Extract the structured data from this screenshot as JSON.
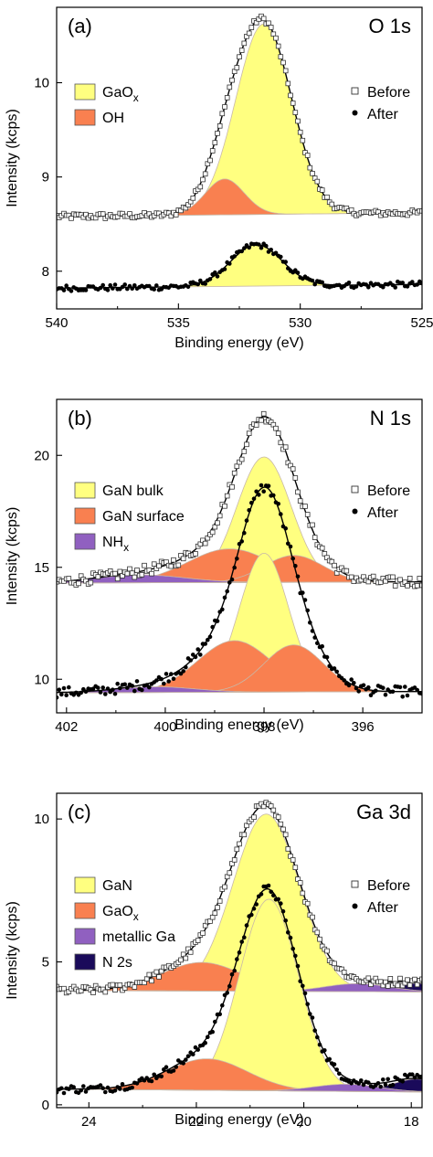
{
  "chart_data": [
    {
      "type": "line",
      "panel_tag": "(a)",
      "title": "O 1s",
      "xlabel": "Binding energy (eV)",
      "ylabel": "Intensity (kcps)",
      "xlim": [
        540,
        525
      ],
      "ylim": [
        7.6,
        10.8
      ],
      "x_reversed": true,
      "xticks": [
        540,
        535,
        530,
        525
      ],
      "yticks": [
        8,
        9,
        10
      ],
      "legend_components": [
        {
          "name": "GaO",
          "sub": "x",
          "color": "#ffff80"
        },
        {
          "name": "OH",
          "sub": "",
          "color": "#f98050"
        }
      ],
      "legend_data": [
        {
          "name": "Before",
          "marker": "open-square"
        },
        {
          "name": "After",
          "marker": "filled-circle"
        }
      ],
      "datasets": [
        {
          "name": "Before",
          "marker": "open-square",
          "baseline": [
            8.58,
            8.62
          ],
          "components": [
            {
              "name": "GaO",
              "sub": "x",
              "color": "#ffff80",
              "center": 531.5,
              "height": 2.02,
              "width": 1.15
            },
            {
              "name": "OH",
              "sub": "",
              "color": "#f98050",
              "center": 533.1,
              "height": 0.38,
              "width": 0.8
            }
          ],
          "noise": 0.03
        },
        {
          "name": "After",
          "marker": "filled-circle",
          "baseline": [
            7.82,
            7.86
          ],
          "components": [
            {
              "name": "GaO",
              "sub": "x",
              "color": "#ffff80",
              "center": 531.8,
              "height": 0.44,
              "width": 1.05
            }
          ],
          "noise": 0.03
        }
      ]
    },
    {
      "type": "line",
      "panel_tag": "(b)",
      "title": "N 1s",
      "xlabel": "Binding energy (eV)",
      "ylabel": "Intensity (kcps)",
      "xlim": [
        402.2,
        394.8
      ],
      "ylim": [
        8.5,
        22.5
      ],
      "x_reversed": true,
      "xticks": [
        402,
        400,
        398,
        396
      ],
      "yticks": [
        10,
        15,
        20
      ],
      "legend_components": [
        {
          "name": "GaN bulk",
          "sub": "",
          "color": "#ffff80"
        },
        {
          "name": "GaN surface",
          "sub": "",
          "color": "#f98050"
        },
        {
          "name": "NH",
          "sub": "x",
          "color": "#9060c0"
        }
      ],
      "legend_data": [
        {
          "name": "Before",
          "marker": "open-square"
        },
        {
          "name": "After",
          "marker": "filled-circle"
        }
      ],
      "datasets": [
        {
          "name": "Before",
          "marker": "open-square",
          "baseline": [
            14.3,
            14.35
          ],
          "components": [
            {
              "name": "GaN bulk",
              "sub": "",
              "color": "#ffff80",
              "center": 398.0,
              "height": 5.6,
              "width": 0.55
            },
            {
              "name": "GaN surface",
              "sub": "",
              "color": "#f98050",
              "center": 398.7,
              "height": 1.5,
              "width": 0.85
            },
            {
              "name": "GaN surface",
              "sub": "",
              "color": "#f98050",
              "center": 397.4,
              "height": 1.2,
              "width": 0.6
            },
            {
              "name": "NH",
              "sub": "x",
              "color": "#9060c0",
              "center": 400.5,
              "height": 0.35,
              "width": 0.9
            }
          ],
          "noise": 0.05
        },
        {
          "name": "After",
          "marker": "filled-circle",
          "baseline": [
            9.4,
            9.45
          ],
          "components": [
            {
              "name": "GaN bulk",
              "sub": "",
              "color": "#ffff80",
              "center": 398.0,
              "height": 6.2,
              "width": 0.5
            },
            {
              "name": "GaN surface",
              "sub": "",
              "color": "#f98050",
              "center": 398.6,
              "height": 2.3,
              "width": 0.75
            },
            {
              "name": "GaN surface",
              "sub": "",
              "color": "#f98050",
              "center": 397.4,
              "height": 2.1,
              "width": 0.6
            },
            {
              "name": "NH",
              "sub": "x",
              "color": "#9060c0",
              "center": 400.2,
              "height": 0.25,
              "width": 0.8
            }
          ],
          "noise": 0.05
        }
      ]
    },
    {
      "type": "line",
      "panel_tag": "(c)",
      "title": "Ga 3d",
      "xlabel": "Binding energy (eV)",
      "ylabel": "Intensity (kcps)",
      "xlim": [
        24.6,
        17.8
      ],
      "ylim": [
        -0.1,
        10.9
      ],
      "x_reversed": true,
      "xticks": [
        24,
        22,
        20,
        18
      ],
      "yticks": [
        0,
        5,
        10
      ],
      "legend_components": [
        {
          "name": "GaN",
          "sub": "",
          "color": "#ffff80"
        },
        {
          "name": "GaO",
          "sub": "x",
          "color": "#f98050"
        },
        {
          "name": "metallic Ga",
          "sub": "",
          "color": "#9060c0"
        },
        {
          "name": "N 2s",
          "sub": "",
          "color": "#1a0a5a"
        }
      ],
      "legend_data": [
        {
          "name": "Before",
          "marker": "open-square"
        },
        {
          "name": "After",
          "marker": "filled-circle"
        }
      ],
      "datasets": [
        {
          "name": "Before",
          "marker": "open-square",
          "baseline": [
            4.0,
            3.95
          ],
          "components": [
            {
              "name": "GaN",
              "sub": "",
              "color": "#ffff80",
              "center": 20.7,
              "height": 6.2,
              "width": 0.62
            },
            {
              "name": "GaO",
              "sub": "x",
              "color": "#f98050",
              "center": 21.9,
              "height": 1.0,
              "width": 0.75
            },
            {
              "name": "metallic Ga",
              "sub": "",
              "color": "#9060c0",
              "center": 19.0,
              "height": 0.28,
              "width": 0.6
            },
            {
              "name": "N 2s",
              "sub": "",
              "color": "#1a0a5a",
              "center": 17.9,
              "height": 0.3,
              "width": 0.45
            }
          ],
          "noise": 0.04
        },
        {
          "name": "After",
          "marker": "filled-circle",
          "baseline": [
            0.55,
            0.45
          ],
          "components": [
            {
              "name": "GaN",
              "sub": "",
              "color": "#ffff80",
              "center": 20.65,
              "height": 6.7,
              "width": 0.55
            },
            {
              "name": "GaO",
              "sub": "x",
              "color": "#f98050",
              "center": 21.8,
              "height": 1.1,
              "width": 0.75
            },
            {
              "name": "metallic Ga",
              "sub": "",
              "color": "#9060c0",
              "center": 19.2,
              "height": 0.25,
              "width": 0.6
            },
            {
              "name": "N 2s",
              "sub": "",
              "color": "#1a0a5a",
              "center": 17.9,
              "height": 0.45,
              "width": 0.45
            }
          ],
          "noise": 0.04
        }
      ]
    }
  ]
}
